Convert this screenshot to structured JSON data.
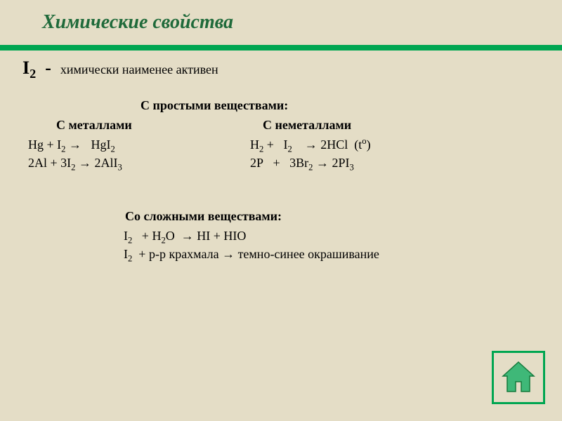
{
  "title": "Химические свойства",
  "subtitle_html": "I<sub>2</sub>&nbsp; - &nbsp;<span class='tail'>химически наименее активен</span>",
  "section_simple": "С простыми веществами:",
  "col_metals": "С металлами",
  "col_nonmetals": "С неметаллами",
  "eq_m1_html": "Hg + I<sub>2</sub> →&nbsp;&nbsp; HgI<sub>2</sub>",
  "eq_m2_html": "2Al + 3I<sub>2</sub> → 2AlI<sub>3</sub>",
  "eq_n1_html": "H<sub>2</sub> +&nbsp;&nbsp; I<sub>2</sub>&nbsp;&nbsp;&nbsp; → 2HCl&nbsp; (t<sup>o</sup>)",
  "eq_n2_html": "2P&nbsp;&nbsp; +&nbsp;&nbsp; 3Br<sub>2</sub> → 2PI<sub>3</sub>",
  "section_complex": "Со сложными веществами:",
  "eq_c1_html": "I<sub>2</sub>&nbsp;&nbsp; + H<sub>2</sub>O&nbsp; → HI + HIO",
  "eq_c2_html": "I<sub>2</sub>&nbsp; + р-р крахмала → темно-синее окрашивание",
  "colors": {
    "background": "#e4ddc6",
    "accent_green": "#00a651",
    "title_green": "#1f6a3a",
    "house_fill": "#3fb878"
  },
  "icons": {
    "home": "home-icon"
  }
}
